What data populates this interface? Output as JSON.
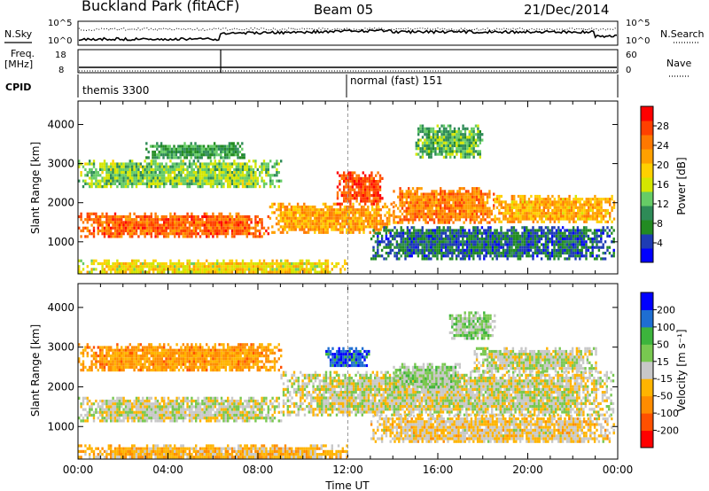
{
  "header": {
    "station": "Buckland Park (fitACF)",
    "beam": "Beam 05",
    "date": "21/Dec/2014"
  },
  "status_panels": {
    "nsky_label": "N.Sky",
    "nsearch_label": "N.Search",
    "freq_label_1": "Freq.",
    "freq_label_2": "[MHz]",
    "nave_label": "Nave",
    "cpid_label": "CPID",
    "noise_left_ticks": [
      "10^5",
      "10^0"
    ],
    "noise_right_ticks": [
      "10^5",
      "10^0"
    ],
    "freq_ticks": [
      "18",
      "8"
    ],
    "nave_ticks": [
      "60",
      "0"
    ],
    "cpid_segments": [
      {
        "label": "themis 3300",
        "start_hour": 0
      },
      {
        "label": "normal (fast) 151",
        "start_hour": 12
      }
    ]
  },
  "chart_data": [
    {
      "type": "heatmap",
      "title": "",
      "xlabel": "",
      "ylabel": "Slant Range [km]",
      "xlim": [
        0,
        24
      ],
      "ylim": [
        180,
        4600
      ],
      "y_ticks": [
        "1000",
        "2000",
        "3000",
        "4000"
      ],
      "colorbar": {
        "label": "Power [dB]",
        "range": [
          0,
          32
        ],
        "tick_labels": [
          "28",
          "24",
          "20",
          "16",
          "12",
          "8",
          "4"
        ],
        "colors": [
          "#0000ff",
          "#1e3cb4",
          "#228b22",
          "#2e8b57",
          "#66cc66",
          "#d4e600",
          "#ffd000",
          "#ffa000",
          "#ff7800",
          "#ff4000",
          "#ff0000"
        ]
      },
      "bands": [
        {
          "h0": 0,
          "h1": 8.5,
          "r0": 1150,
          "r1": 1750,
          "level": 26
        },
        {
          "h0": 8.5,
          "h1": 14,
          "r0": 1250,
          "r1": 2000,
          "level": 22
        },
        {
          "h0": 11.5,
          "h1": 13.5,
          "r0": 2000,
          "r1": 2800,
          "level": 27
        },
        {
          "h0": 14,
          "h1": 18.5,
          "r0": 1500,
          "r1": 2400,
          "level": 24
        },
        {
          "h0": 18.5,
          "h1": 23.8,
          "r0": 1500,
          "r1": 2200,
          "level": 21
        },
        {
          "h0": 0,
          "h1": 12,
          "r0": 200,
          "r1": 550,
          "level": 18
        },
        {
          "h0": 0,
          "h1": 9,
          "r0": 2400,
          "r1": 3100,
          "level": 14
        },
        {
          "h0": 3,
          "h1": 7.5,
          "r0": 3150,
          "r1": 3550,
          "level": 10
        },
        {
          "h0": 15,
          "h1": 18,
          "r0": 3200,
          "r1": 4000,
          "level": 12
        },
        {
          "h0": 13,
          "h1": 23.8,
          "r0": 600,
          "r1": 1400,
          "level": 6
        }
      ]
    },
    {
      "type": "heatmap",
      "title": "",
      "xlabel": "Time UT",
      "ylabel": "Slant Range [km]",
      "xlim": [
        0,
        24
      ],
      "ylim": [
        180,
        4600
      ],
      "x_ticks": [
        "00:00",
        "04:00",
        "08:00",
        "12:00",
        "16:00",
        "20:00",
        "00:00"
      ],
      "y_ticks": [
        "1000",
        "2000",
        "3000",
        "4000"
      ],
      "colorbar": {
        "label": "Velocity [m s⁻¹]",
        "range": [
          -250,
          250
        ],
        "tick_labels": [
          "200",
          "100",
          "50",
          "15",
          "-15",
          "-50",
          "-100",
          "-200"
        ],
        "colors": [
          "#ff0000",
          "#ff5000",
          "#ff8c00",
          "#ffb400",
          "#c8c8c8",
          "#78c850",
          "#3cb43c",
          "#1e6ed2",
          "#0000ff"
        ]
      },
      "bands": [
        {
          "h0": 0,
          "h1": 9,
          "r0": 1150,
          "r1": 1750,
          "level": 0
        },
        {
          "h0": 9,
          "h1": 23.8,
          "r0": 1300,
          "r1": 2400,
          "level": 0
        },
        {
          "h0": 0,
          "h1": 12,
          "r0": 200,
          "r1": 550,
          "level": -60
        },
        {
          "h0": 14,
          "h1": 17,
          "r0": 2000,
          "r1": 2600,
          "level": 40
        },
        {
          "h0": 16.5,
          "h1": 18.5,
          "r0": 3200,
          "r1": 3900,
          "level": 45
        },
        {
          "h0": 11,
          "h1": 13,
          "r0": 2500,
          "r1": 3000,
          "level": 180
        },
        {
          "h0": 0,
          "h1": 9,
          "r0": 2400,
          "r1": 3100,
          "level": -90
        },
        {
          "h0": 13,
          "h1": 23.8,
          "r0": 600,
          "r1": 1300,
          "level": -30
        },
        {
          "h0": 17.5,
          "h1": 23,
          "r0": 2400,
          "r1": 3000,
          "level": 10
        }
      ]
    }
  ]
}
